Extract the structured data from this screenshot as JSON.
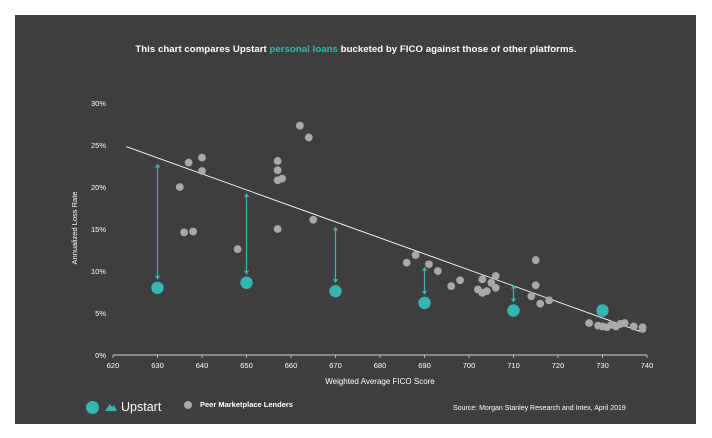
{
  "title": {
    "before": "This chart compares Upstart ",
    "highlight": "personal loans",
    "after": " bucketed by FICO against those of other platforms."
  },
  "colors": {
    "background": "#3e3e3e",
    "upstart": "#35b7b1",
    "peers": "#a9a9a9",
    "text": "#ffffff"
  },
  "legend": {
    "upstart_label": "Upstart",
    "peers_label": "Peer Marketplace Lenders"
  },
  "source": "Source: Morgan Stanley Research and Intex, April 2019",
  "chart_data": {
    "type": "scatter",
    "xlabel": "Weighted Average FICO Score",
    "ylabel": "Annualized Loss Rate",
    "xlim": [
      620,
      740
    ],
    "ylim": [
      0,
      30
    ],
    "xticks": [
      620,
      630,
      640,
      650,
      660,
      670,
      680,
      690,
      700,
      710,
      720,
      730,
      740
    ],
    "yticks": [
      0,
      5,
      10,
      15,
      20,
      25,
      30
    ],
    "ytick_labels": [
      "0%",
      "5%",
      "10%",
      "15%",
      "20%",
      "25%",
      "30%"
    ],
    "grid": false,
    "trendline": {
      "x": [
        623,
        739
      ],
      "y": [
        24.8,
        2.7
      ]
    },
    "series": [
      {
        "name": "Upstart",
        "points": [
          [
            630,
            8.0
          ],
          [
            650,
            8.6
          ],
          [
            670,
            7.6
          ],
          [
            690,
            6.2
          ],
          [
            710,
            5.3
          ],
          [
            730,
            5.3
          ]
        ]
      },
      {
        "name": "Peer Marketplace Lenders",
        "points": [
          [
            635,
            20.0
          ],
          [
            636,
            14.6
          ],
          [
            637,
            22.9
          ],
          [
            638,
            14.7
          ],
          [
            640,
            23.5
          ],
          [
            640,
            21.9
          ],
          [
            648,
            12.6
          ],
          [
            657,
            23.1
          ],
          [
            657,
            22.0
          ],
          [
            657,
            20.8
          ],
          [
            658,
            21.0
          ],
          [
            657,
            15.0
          ],
          [
            662,
            27.3
          ],
          [
            664,
            25.9
          ],
          [
            665,
            16.1
          ],
          [
            686,
            11.0
          ],
          [
            688,
            11.9
          ],
          [
            691,
            10.8
          ],
          [
            693,
            10.0
          ],
          [
            696,
            8.2
          ],
          [
            698,
            8.9
          ],
          [
            702,
            7.8
          ],
          [
            703,
            9.0
          ],
          [
            703,
            7.4
          ],
          [
            704,
            7.6
          ],
          [
            705,
            8.6
          ],
          [
            706,
            8.0
          ],
          [
            706,
            9.4
          ],
          [
            714,
            7.0
          ],
          [
            715,
            11.3
          ],
          [
            715,
            8.3
          ],
          [
            716,
            6.1
          ],
          [
            718,
            6.5
          ],
          [
            727,
            3.8
          ],
          [
            729,
            3.5
          ],
          [
            730,
            3.4
          ],
          [
            731,
            3.3
          ],
          [
            732,
            3.6
          ],
          [
            733,
            3.4
          ],
          [
            734,
            3.7
          ],
          [
            735,
            3.8
          ],
          [
            737,
            3.4
          ],
          [
            739,
            3.1
          ],
          [
            739,
            3.3
          ]
        ]
      }
    ],
    "gap_arrows": [
      {
        "x": 630,
        "from": 22.8,
        "to": 8.0
      },
      {
        "x": 650,
        "from": 19.3,
        "to": 8.6
      },
      {
        "x": 670,
        "from": 15.3,
        "to": 7.6
      },
      {
        "x": 690,
        "from": 10.5,
        "to": 6.2
      },
      {
        "x": 710,
        "from": 8.4,
        "to": 5.3
      }
    ]
  }
}
